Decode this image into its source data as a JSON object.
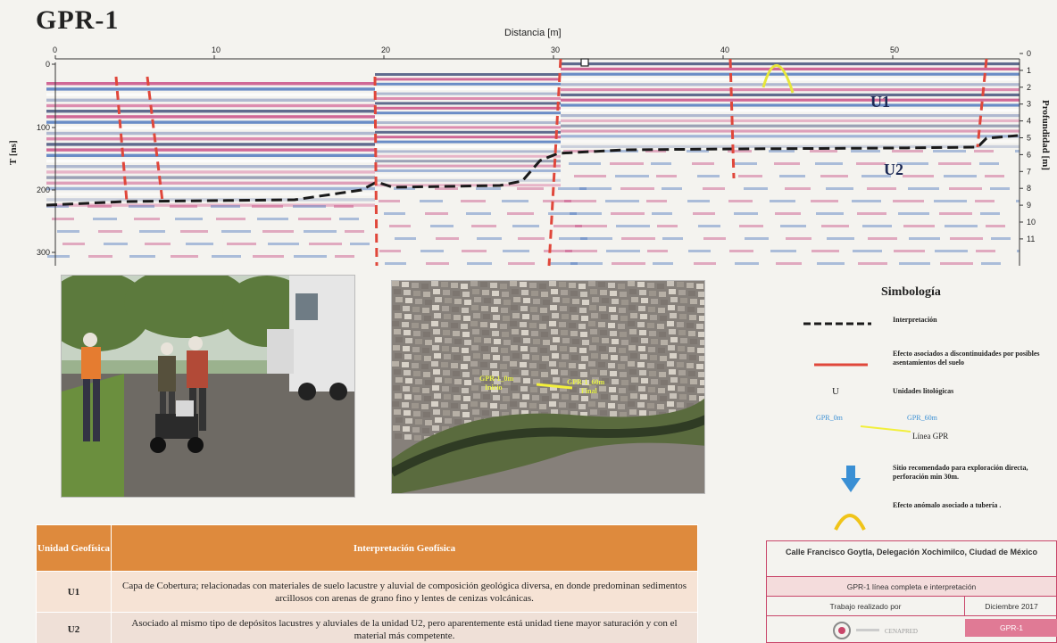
{
  "page": {
    "title": "GPR-1"
  },
  "radargram": {
    "x_axis_title": "Distancia  [m]",
    "x_ticks": [
      "0",
      "10",
      "20",
      "30",
      "40",
      "50"
    ],
    "y_left_title": "T [ns]",
    "y_left_ticks": [
      "0",
      "100",
      "200",
      "300"
    ],
    "y_right_title": "Profundidad  [m]",
    "y_right_ticks": [
      "0",
      "1",
      "2",
      "3",
      "4",
      "5",
      "6",
      "7",
      "8",
      "9",
      "10",
      "11"
    ],
    "unit_labels": [
      "U1",
      "U2"
    ],
    "colors": {
      "interpretation_line": "#222222",
      "discontinuity": "#e0473b",
      "pipe": "#e6e63a"
    }
  },
  "map": {
    "start_label": "GPR-1_0m\nInicio",
    "end_label": "GPR-1_60m\nFinal"
  },
  "legend": {
    "title": "Simbología",
    "interpretation": "Interpretación",
    "discontinuity": "Efecto asociados a discontinuidades por posibles asentamientos  del suelo",
    "unit_symbol": "U",
    "unit_text": "Unidades litológicas",
    "gpr_start": "GPR_0m",
    "gpr_end": "GPR_60m",
    "gpr_line": "Línea GPR",
    "recommended": "Sitio recomendado  para exploración directa,  perforación min 30m.",
    "pipe": "Efecto anómalo asociado a tubería ."
  },
  "table": {
    "header_unit": "Unidad Geofísica",
    "header_interp": "Interpretación Geofísica",
    "rows": [
      {
        "unit": "U1",
        "text": "Capa de Cobertura; relacionadas con materiales de suelo lacustre y aluvial  de composición geológica diversa, en donde predominan sedimentos arcillosos con arenas de grano fino y lentes de cenizas volcánicas."
      },
      {
        "unit": "U2",
        "text": "Asociado al mismo tipo de depósitos lacustres y aluviales  de la unidad U2, pero aparentemente está unidad tiene mayor saturación y con el material más competente."
      }
    ]
  },
  "info": {
    "address": "Calle Francisco Goytla, Delegación Xochimilco, Ciudad de México",
    "profile": "GPR-1  línea completa e interpretación",
    "work_by": "Trabajo realizado por",
    "date": "Diciembre 2017",
    "code": "GPR-1",
    "logo_text": "CENAPRED"
  }
}
